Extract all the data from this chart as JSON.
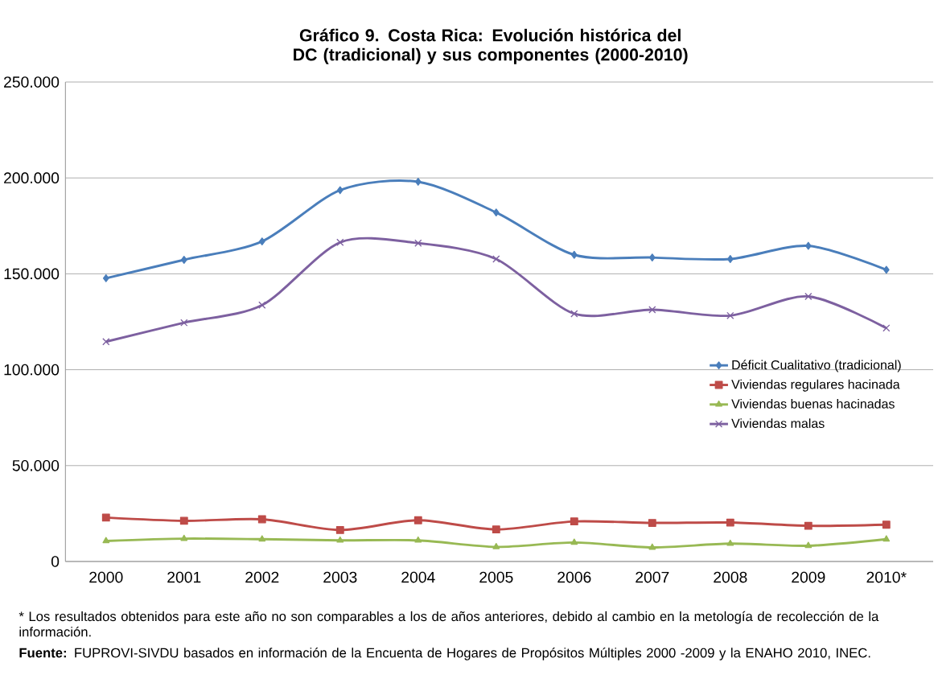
{
  "chart_data": {
    "type": "line",
    "title": "Gráfico 9. Costa Rica: Evolución histórica del DC (tradicional) y sus componentes (2000-2010)",
    "categories": [
      "2000",
      "2001",
      "2002",
      "2003",
      "2004",
      "2005",
      "2006",
      "2007",
      "2008",
      "2009",
      "2010*"
    ],
    "series": [
      {
        "name": "Déficit Cualitativo (tradicional)",
        "color": "#4a7ebb",
        "marker": "diamond",
        "values": [
          147700,
          157300,
          166900,
          193600,
          198000,
          182000,
          159900,
          158500,
          157700,
          164600,
          152100
        ]
      },
      {
        "name": "Viviendas regulares hacinada",
        "color": "#be4b48",
        "marker": "square",
        "values": [
          22900,
          21200,
          22000,
          16400,
          21500,
          16700,
          20900,
          20100,
          20300,
          18600,
          19200
        ]
      },
      {
        "name": "Viviendas buenas hacinadas",
        "color": "#98b954",
        "marker": "triangle",
        "values": [
          10700,
          11900,
          11600,
          11000,
          11000,
          7600,
          9900,
          7300,
          9300,
          8200,
          11600
        ]
      },
      {
        "name": "Viviendas malas",
        "color": "#7d60a0",
        "marker": "cross",
        "values": [
          114600,
          124500,
          133700,
          166400,
          166000,
          157700,
          129200,
          131300,
          128200,
          138200,
          121700
        ]
      }
    ],
    "ylim": [
      0,
      250000
    ],
    "yticks": [
      {
        "value": 0,
        "label": "0"
      },
      {
        "value": 50000,
        "label": "50.000"
      },
      {
        "value": 100000,
        "label": "100.000"
      },
      {
        "value": 150000,
        "label": "150.000"
      },
      {
        "value": 200000,
        "label": "200.000"
      },
      {
        "value": 250000,
        "label": "250.000"
      }
    ],
    "grid": "y",
    "legend": "right",
    "line_style": "solid",
    "annotations": [
      "* Los resultados obtenidos para este año no son comparables a los de años anteriores, debido al cambio en la metología de recolección de la información.",
      "**Fuente:** FUPROVI-SIVDU basados en información de la Encuenta de Hogares de Propósitos Múltiples 2000 -2009 y la ENAHO 2010, INEC."
    ]
  }
}
